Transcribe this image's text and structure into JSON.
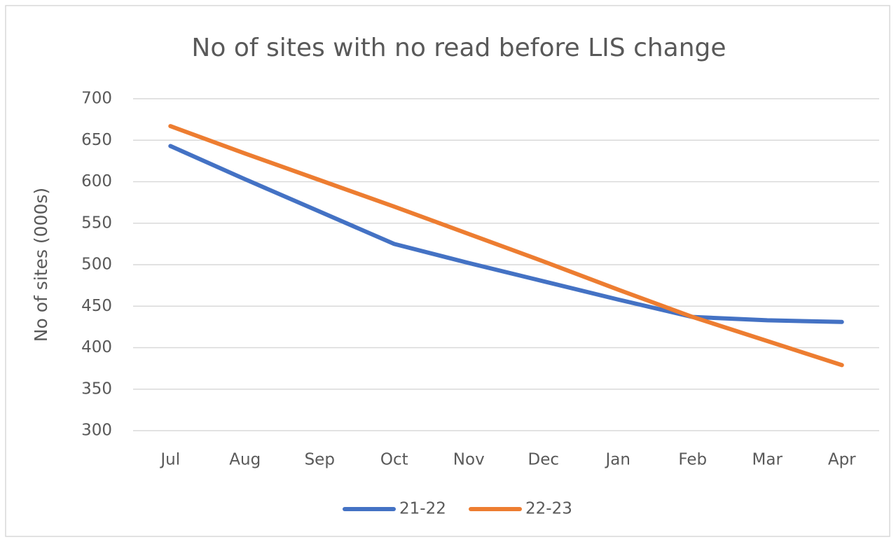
{
  "chart_data": {
    "type": "line",
    "title": "No of sites with no read before LIS change",
    "ylabel": "No of sites (000s)",
    "categories": [
      "Jul",
      "Aug",
      "Sep",
      "Oct",
      "Nov",
      "Dec",
      "Jan",
      "Feb",
      "Mar",
      "Apr"
    ],
    "series": [
      {
        "name": "21-22",
        "color": "#4472c4",
        "values": [
          643,
          603,
          564,
          525,
          502,
          480,
          458,
          437,
          433,
          431
        ]
      },
      {
        "name": "22-23",
        "color": "#ed7d31",
        "values": [
          667,
          634,
          602,
          570,
          537,
          504,
          470,
          437,
          408,
          379
        ]
      }
    ],
    "ylim": [
      300,
      700
    ],
    "yticks": [
      300,
      350,
      400,
      450,
      500,
      550,
      600,
      650,
      700
    ],
    "grid": true,
    "legend": "bottom"
  }
}
